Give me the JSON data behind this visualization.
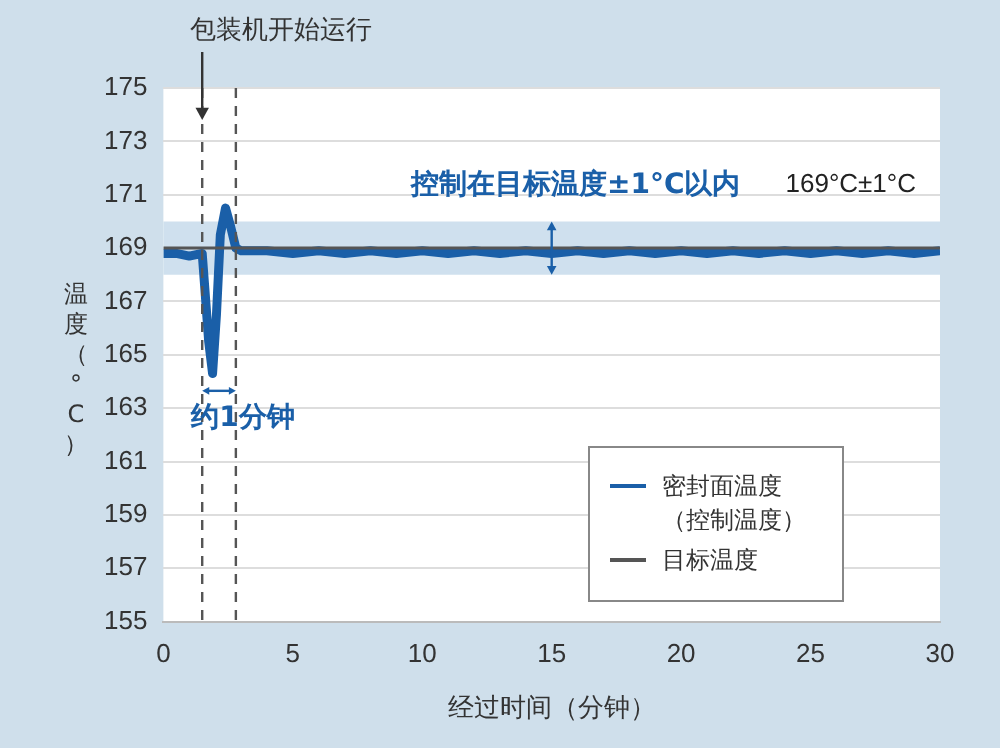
{
  "chart_data": {
    "type": "line",
    "xlabel": "经过时间（分钟）",
    "ylabel": "温度（°C）",
    "xlim": [
      0,
      30
    ],
    "xticks": [
      0,
      5,
      10,
      15,
      20,
      25,
      30
    ],
    "ylim": [
      155,
      175
    ],
    "yticks": [
      155,
      157,
      159,
      161,
      163,
      165,
      167,
      169,
      171,
      173,
      175
    ],
    "grid": "y",
    "legend": "bottom right",
    "marker": "none",
    "line_style": "solid",
    "series": [
      {
        "name": "密封面温度（控制温度）",
        "color": "#1a5fa8",
        "x": [
          0,
          0.5,
          1,
          1.5,
          1.6,
          1.75,
          1.9,
          2.05,
          2.2,
          2.4,
          2.6,
          2.8,
          3,
          4,
          5,
          6,
          7,
          8,
          9,
          10,
          11,
          12,
          13,
          14,
          15,
          16,
          17,
          18,
          19,
          20,
          21,
          22,
          23,
          24,
          25,
          26,
          27,
          28,
          29,
          30
        ],
        "values": [
          168.8,
          168.8,
          168.7,
          168.8,
          167.5,
          165.5,
          164.3,
          166.5,
          169.5,
          170.5,
          169.8,
          169,
          168.9,
          168.9,
          168.8,
          168.9,
          168.8,
          168.9,
          168.8,
          168.9,
          168.8,
          168.9,
          168.8,
          168.9,
          168.8,
          168.9,
          168.8,
          168.9,
          168.8,
          168.9,
          168.8,
          168.9,
          168.8,
          168.9,
          168.8,
          168.9,
          168.8,
          168.9,
          168.8,
          168.9
        ]
      },
      {
        "name": "目标温度",
        "color": "#555555",
        "x": [
          0,
          30
        ],
        "values": [
          169,
          169
        ]
      }
    ],
    "bands": [
      {
        "axis": "y",
        "from": 168,
        "to": 170,
        "label": "169°C±1°C",
        "color": "#cfe0ee"
      }
    ],
    "ref_lines": [
      {
        "axis": "x",
        "value": 1.5,
        "label": "包装机开始运行",
        "color": "#555555",
        "line_style": "dashed"
      },
      {
        "axis": "x",
        "value": 2.8,
        "color": "#555555",
        "line_style": "dashed"
      }
    ],
    "annotations": [
      "控制在目标温度±1°C以内",
      "约1分钟"
    ]
  }
}
